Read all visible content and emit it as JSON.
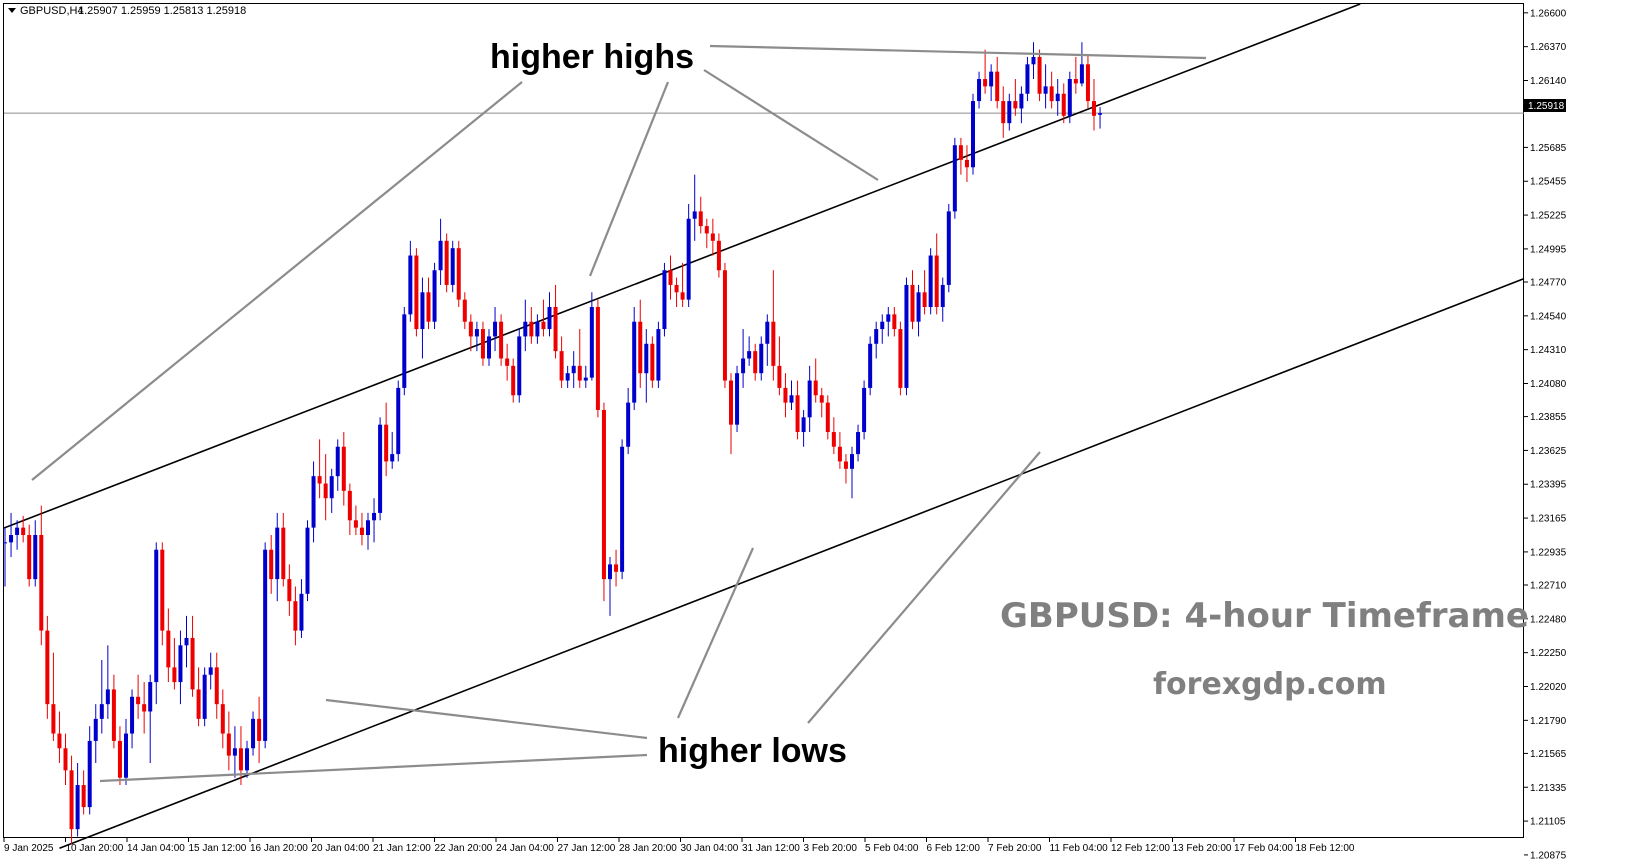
{
  "header": {
    "symbol": "GBPUSD,H4",
    "ohlc": "1.25907 1.25959 1.25813 1.25918",
    "triangle_icon": "triangle-down-icon"
  },
  "current_price": "1.25918",
  "colors": {
    "bull": "#0000CD",
    "bear": "#EE0000",
    "channel": "#000000",
    "pointer": "#8C8C8C",
    "watermark": "#808080"
  },
  "annotations": {
    "higher_highs": "higher highs",
    "higher_lows": "higher lows",
    "title": "GBPUSD: 4-hour Timeframe",
    "site": "forexgdp.com"
  },
  "chart_data": {
    "type": "candlestick",
    "title": "GBPUSD: 4-hour Timeframe",
    "symbol": "GBPUSD",
    "timeframe": "H4",
    "ylim": [
      1.2099,
      1.2666
    ],
    "yticks": [
      "1.26600",
      "1.26370",
      "1.26140",
      "1.25685",
      "1.25455",
      "1.25225",
      "1.24995",
      "1.24770",
      "1.24540",
      "1.24310",
      "1.24080",
      "1.23855",
      "1.23625",
      "1.23395",
      "1.23165",
      "1.22935",
      "1.22710",
      "1.22480",
      "1.22250",
      "1.22020",
      "1.21790",
      "1.21565",
      "1.21335",
      "1.21105",
      "1.20875"
    ],
    "xticks": [
      "9 Jan 2025",
      "10 Jan 20:00",
      "14 Jan 04:00",
      "15 Jan 12:00",
      "16 Jan 20:00",
      "20 Jan 04:00",
      "21 Jan 12:00",
      "22 Jan 20:00",
      "24 Jan 04:00",
      "27 Jan 12:00",
      "28 Jan 20:00",
      "30 Jan 04:00",
      "31 Jan 12:00",
      "3 Feb 20:00",
      "5 Feb 04:00",
      "6 Feb 12:00",
      "7 Feb 20:00",
      "11 Feb 04:00",
      "12 Feb 12:00",
      "13 Feb 20:00",
      "17 Feb 04:00",
      "18 Feb 12:00"
    ],
    "channel": {
      "upper": [
        [
          0,
          1.231
        ],
        [
          224,
          1.2666
        ]
      ],
      "lower": [
        [
          9,
          1.2092
        ],
        [
          249,
          1.2476
        ]
      ]
    },
    "candles": [
      [
        1.23,
        1.231,
        1.227,
        1.23
      ],
      [
        1.23,
        1.232,
        1.229,
        1.2305
      ],
      [
        1.2305,
        1.2315,
        1.2295,
        1.231
      ],
      [
        1.231,
        1.2318,
        1.23,
        1.2305
      ],
      [
        1.2305,
        1.2312,
        1.227,
        1.2275
      ],
      [
        1.2275,
        1.2315,
        1.227,
        1.2305
      ],
      [
        1.2305,
        1.2325,
        1.223,
        1.224
      ],
      [
        1.224,
        1.225,
        1.218,
        1.219
      ],
      [
        1.219,
        1.2225,
        1.2165,
        1.217
      ],
      [
        1.217,
        1.2185,
        1.215,
        1.216
      ],
      [
        1.216,
        1.217,
        1.2135,
        1.2145
      ],
      [
        1.2145,
        1.2155,
        1.2095,
        1.2105
      ],
      [
        1.2105,
        1.215,
        1.21,
        1.2135
      ],
      [
        1.2135,
        1.2145,
        1.2115,
        1.212
      ],
      [
        1.212,
        1.2175,
        1.2115,
        1.2165
      ],
      [
        1.2165,
        1.219,
        1.215,
        1.218
      ],
      [
        1.218,
        1.222,
        1.217,
        1.219
      ],
      [
        1.219,
        1.223,
        1.218,
        1.22
      ],
      [
        1.22,
        1.221,
        1.216,
        1.2165
      ],
      [
        1.2165,
        1.2175,
        1.2135,
        1.214
      ],
      [
        1.214,
        1.218,
        1.2135,
        1.217
      ],
      [
        1.217,
        1.22,
        1.216,
        1.2195
      ],
      [
        1.2195,
        1.221,
        1.218,
        1.219
      ],
      [
        1.219,
        1.2205,
        1.217,
        1.2185
      ],
      [
        1.2185,
        1.221,
        1.215,
        1.2205
      ],
      [
        1.2205,
        1.23,
        1.219,
        1.2295
      ],
      [
        1.2295,
        1.23,
        1.223,
        1.224
      ],
      [
        1.224,
        1.2255,
        1.2205,
        1.2215
      ],
      [
        1.2215,
        1.2235,
        1.22,
        1.2205
      ],
      [
        1.2205,
        1.224,
        1.219,
        1.223
      ],
      [
        1.223,
        1.225,
        1.2215,
        1.2235
      ],
      [
        1.2235,
        1.225,
        1.2195,
        1.22
      ],
      [
        1.22,
        1.2215,
        1.2175,
        1.218
      ],
      [
        1.218,
        1.2215,
        1.2175,
        1.221
      ],
      [
        1.221,
        1.2225,
        1.22,
        1.2215
      ],
      [
        1.2215,
        1.2225,
        1.218,
        1.219
      ],
      [
        1.219,
        1.22,
        1.216,
        1.217
      ],
      [
        1.217,
        1.2185,
        1.2145,
        1.2155
      ],
      [
        1.2155,
        1.2175,
        1.214,
        1.216
      ],
      [
        1.216,
        1.2175,
        1.2135,
        1.2145
      ],
      [
        1.2145,
        1.2165,
        1.214,
        1.216
      ],
      [
        1.216,
        1.2185,
        1.2155,
        1.218
      ],
      [
        1.218,
        1.2195,
        1.215,
        1.2165
      ],
      [
        1.2165,
        1.23,
        1.216,
        1.2295
      ],
      [
        1.2295,
        1.2305,
        1.2265,
        1.2275
      ],
      [
        1.2275,
        1.232,
        1.226,
        1.231
      ],
      [
        1.231,
        1.232,
        1.227,
        1.2275
      ],
      [
        1.2275,
        1.2285,
        1.225,
        1.226
      ],
      [
        1.226,
        1.227,
        1.223,
        1.224
      ],
      [
        1.224,
        1.2275,
        1.2235,
        1.2265
      ],
      [
        1.2265,
        1.2315,
        1.226,
        1.231
      ],
      [
        1.231,
        1.2355,
        1.23,
        1.2345
      ],
      [
        1.2345,
        1.237,
        1.233,
        1.234
      ],
      [
        1.234,
        1.236,
        1.2315,
        1.233
      ],
      [
        1.233,
        1.235,
        1.232,
        1.2345
      ],
      [
        1.2345,
        1.237,
        1.2335,
        1.2365
      ],
      [
        1.2365,
        1.2375,
        1.2325,
        1.2335
      ],
      [
        1.2335,
        1.234,
        1.2305,
        1.2315
      ],
      [
        1.2315,
        1.2325,
        1.2305,
        1.231
      ],
      [
        1.231,
        1.232,
        1.2298,
        1.2305
      ],
      [
        1.2305,
        1.232,
        1.2295,
        1.2315
      ],
      [
        1.2315,
        1.233,
        1.23,
        1.232
      ],
      [
        1.232,
        1.2385,
        1.2315,
        1.238
      ],
      [
        1.238,
        1.2395,
        1.2345,
        1.2355
      ],
      [
        1.2355,
        1.2375,
        1.235,
        1.236
      ],
      [
        1.236,
        1.241,
        1.2355,
        1.2405
      ],
      [
        1.2405,
        1.246,
        1.24,
        1.2455
      ],
      [
        1.2455,
        1.2505,
        1.245,
        1.2495
      ],
      [
        1.2495,
        1.25,
        1.244,
        1.2445
      ],
      [
        1.2445,
        1.248,
        1.2425,
        1.247
      ],
      [
        1.247,
        1.248,
        1.2445,
        1.245
      ],
      [
        1.245,
        1.249,
        1.2445,
        1.2485
      ],
      [
        1.2485,
        1.252,
        1.2475,
        1.2505
      ],
      [
        1.2505,
        1.251,
        1.247,
        1.2475
      ],
      [
        1.2475,
        1.2505,
        1.247,
        1.25
      ],
      [
        1.25,
        1.2505,
        1.246,
        1.2465
      ],
      [
        1.2465,
        1.247,
        1.2445,
        1.245
      ],
      [
        1.245,
        1.2455,
        1.243,
        1.244
      ],
      [
        1.244,
        1.245,
        1.243,
        1.2445
      ],
      [
        1.2445,
        1.245,
        1.242,
        1.2425
      ],
      [
        1.2425,
        1.2445,
        1.242,
        1.244
      ],
      [
        1.244,
        1.246,
        1.243,
        1.245
      ],
      [
        1.245,
        1.2455,
        1.242,
        1.2425
      ],
      [
        1.2425,
        1.2435,
        1.241,
        1.242
      ],
      [
        1.242,
        1.2425,
        1.2395,
        1.24
      ],
      [
        1.24,
        1.2445,
        1.2395,
        1.244
      ],
      [
        1.244,
        1.2465,
        1.243,
        1.245
      ],
      [
        1.245,
        1.246,
        1.2435,
        1.244
      ],
      [
        1.244,
        1.2455,
        1.2435,
        1.245
      ],
      [
        1.245,
        1.2465,
        1.244,
        1.2445
      ],
      [
        1.2445,
        1.247,
        1.244,
        1.246
      ],
      [
        1.246,
        1.2475,
        1.2425,
        1.243
      ],
      [
        1.243,
        1.244,
        1.2405,
        1.241
      ],
      [
        1.241,
        1.242,
        1.2405,
        1.2415
      ],
      [
        1.2415,
        1.243,
        1.2405,
        1.242
      ],
      [
        1.242,
        1.2445,
        1.2405,
        1.241
      ],
      [
        1.241,
        1.242,
        1.2405,
        1.2412
      ],
      [
        1.2412,
        1.247,
        1.241,
        1.246
      ],
      [
        1.246,
        1.2465,
        1.2385,
        1.239
      ],
      [
        1.239,
        1.2395,
        1.226,
        1.2275
      ],
      [
        1.2275,
        1.229,
        1.225,
        1.2285
      ],
      [
        1.2285,
        1.2295,
        1.227,
        1.228
      ],
      [
        1.228,
        1.237,
        1.2275,
        1.2365
      ],
      [
        1.2365,
        1.2405,
        1.236,
        1.2395
      ],
      [
        1.2395,
        1.246,
        1.239,
        1.245
      ],
      [
        1.245,
        1.2465,
        1.2405,
        1.2415
      ],
      [
        1.2415,
        1.2445,
        1.2395,
        1.2435
      ],
      [
        1.2435,
        1.244,
        1.2405,
        1.241
      ],
      [
        1.241,
        1.245,
        1.2405,
        1.2445
      ],
      [
        1.2445,
        1.249,
        1.244,
        1.2485
      ],
      [
        1.2485,
        1.2495,
        1.2465,
        1.2475
      ],
      [
        1.2475,
        1.248,
        1.246,
        1.247
      ],
      [
        1.247,
        1.249,
        1.246,
        1.2465
      ],
      [
        1.2465,
        1.253,
        1.246,
        1.252
      ],
      [
        1.252,
        1.255,
        1.2505,
        1.2525
      ],
      [
        1.2525,
        1.2535,
        1.251,
        1.2515
      ],
      [
        1.2515,
        1.252,
        1.25,
        1.251
      ],
      [
        1.251,
        1.252,
        1.2495,
        1.2505
      ],
      [
        1.2505,
        1.251,
        1.248,
        1.2485
      ],
      [
        1.2485,
        1.249,
        1.2405,
        1.241
      ],
      [
        1.241,
        1.2415,
        1.236,
        1.238
      ],
      [
        1.238,
        1.242,
        1.2375,
        1.2415
      ],
      [
        1.2415,
        1.2445,
        1.2405,
        1.2425
      ],
      [
        1.2425,
        1.244,
        1.242,
        1.243
      ],
      [
        1.243,
        1.2435,
        1.241,
        1.2415
      ],
      [
        1.2415,
        1.244,
        1.241,
        1.2435
      ],
      [
        1.2435,
        1.2455,
        1.242,
        1.245
      ],
      [
        1.245,
        1.2485,
        1.241,
        1.242
      ],
      [
        1.242,
        1.244,
        1.24,
        1.2405
      ],
      [
        1.2405,
        1.2415,
        1.2385,
        1.2395
      ],
      [
        1.2395,
        1.241,
        1.239,
        1.24
      ],
      [
        1.24,
        1.241,
        1.237,
        1.2375
      ],
      [
        1.2375,
        1.239,
        1.2365,
        1.2385
      ],
      [
        1.2385,
        1.242,
        1.2375,
        1.241
      ],
      [
        1.241,
        1.2425,
        1.2395,
        1.24
      ],
      [
        1.24,
        1.2405,
        1.2385,
        1.2395
      ],
      [
        1.2395,
        1.24,
        1.237,
        1.2375
      ],
      [
        1.2375,
        1.2385,
        1.236,
        1.2365
      ],
      [
        1.2365,
        1.2375,
        1.235,
        1.2355
      ],
      [
        1.2355,
        1.236,
        1.234,
        1.235
      ],
      [
        1.235,
        1.2365,
        1.233,
        1.236
      ],
      [
        1.236,
        1.238,
        1.2355,
        1.2375
      ],
      [
        1.2375,
        1.241,
        1.237,
        1.2405
      ],
      [
        1.2405,
        1.244,
        1.24,
        1.2435
      ],
      [
        1.2435,
        1.245,
        1.2425,
        1.2445
      ],
      [
        1.2445,
        1.2455,
        1.2435,
        1.245
      ],
      [
        1.245,
        1.246,
        1.244,
        1.2455
      ],
      [
        1.2455,
        1.246,
        1.244,
        1.2445
      ],
      [
        1.2445,
        1.245,
        1.24,
        1.2405
      ],
      [
        1.2405,
        1.248,
        1.24,
        1.2475
      ],
      [
        1.2475,
        1.2485,
        1.2445,
        1.245
      ],
      [
        1.245,
        1.2475,
        1.244,
        1.247
      ],
      [
        1.247,
        1.2485,
        1.2455,
        1.246
      ],
      [
        1.246,
        1.25,
        1.2455,
        1.2495
      ],
      [
        1.2495,
        1.251,
        1.2455,
        1.246
      ],
      [
        1.246,
        1.248,
        1.245,
        1.2475
      ],
      [
        1.2475,
        1.253,
        1.247,
        1.2525
      ],
      [
        1.2525,
        1.2575,
        1.252,
        1.257
      ],
      [
        1.257,
        1.2575,
        1.255,
        1.256
      ],
      [
        1.256,
        1.257,
        1.2545,
        1.2555
      ],
      [
        1.2555,
        1.2605,
        1.255,
        1.26
      ],
      [
        1.26,
        1.262,
        1.2595,
        1.2615
      ],
      [
        1.2615,
        1.2635,
        1.2605,
        1.261
      ],
      [
        1.261,
        1.2625,
        1.26,
        1.262
      ],
      [
        1.262,
        1.263,
        1.2595,
        1.26
      ],
      [
        1.26,
        1.261,
        1.2575,
        1.2585
      ],
      [
        1.2585,
        1.2605,
        1.258,
        1.26
      ],
      [
        1.26,
        1.2615,
        1.259,
        1.2595
      ],
      [
        1.2595,
        1.261,
        1.2585,
        1.2605
      ],
      [
        1.2605,
        1.263,
        1.26,
        1.2625
      ],
      [
        1.2625,
        1.264,
        1.2615,
        1.263
      ],
      [
        1.263,
        1.2635,
        1.26,
        1.2605
      ],
      [
        1.2605,
        1.2625,
        1.2595,
        1.261
      ],
      [
        1.261,
        1.262,
        1.2595,
        1.26
      ],
      [
        1.26,
        1.2615,
        1.259,
        1.2605
      ],
      [
        1.2605,
        1.2612,
        1.2585,
        1.259
      ],
      [
        1.259,
        1.262,
        1.2585,
        1.2615
      ],
      [
        1.2615,
        1.263,
        1.2605,
        1.2612
      ],
      [
        1.2612,
        1.264,
        1.261,
        1.2625
      ],
      [
        1.2625,
        1.2632,
        1.2595,
        1.26
      ],
      [
        1.26,
        1.2615,
        1.258,
        1.259
      ],
      [
        1.25907,
        1.25959,
        1.25813,
        1.25918
      ]
    ]
  }
}
